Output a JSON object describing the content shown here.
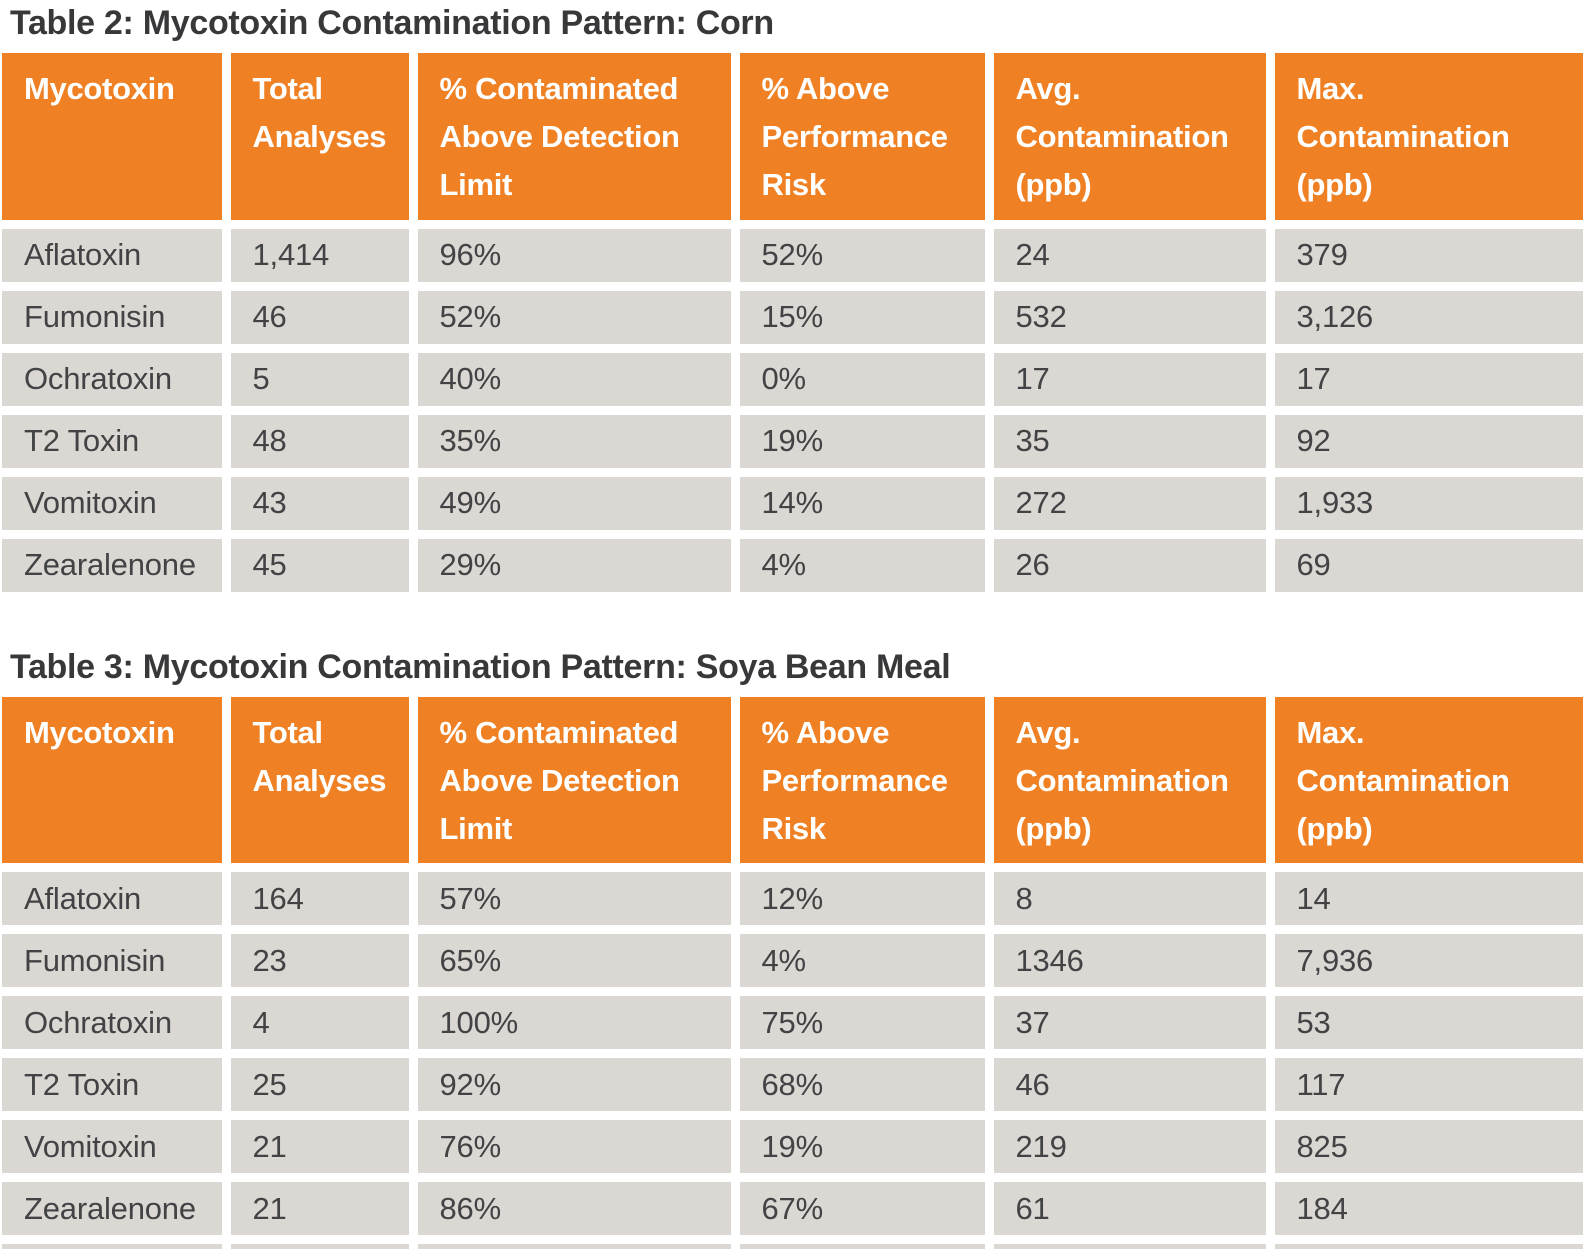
{
  "colors": {
    "header_bg": "#ef8124",
    "header_text": "#ffffff",
    "row_bg": "#dbd8d3",
    "body_text": "#434345",
    "title_text": "#38383a",
    "gap": "#ffffff"
  },
  "tables": [
    {
      "title": "Table 2: Mycotoxin Contamination Pattern: Corn",
      "columns": [
        "Mycotoxin",
        "Total Analyses",
        "% Contaminated Above Detection Limit",
        "% Above Performance Risk",
        "Avg. Contamination (ppb)",
        "Max. Contamination (ppb)"
      ],
      "rows": [
        [
          "Aflatoxin",
          "1,414",
          "96%",
          "52%",
          "24",
          "379"
        ],
        [
          "Fumonisin",
          "46",
          "52%",
          "15%",
          "532",
          "3,126"
        ],
        [
          "Ochratoxin",
          "5",
          "40%",
          "0%",
          "17",
          "17"
        ],
        [
          "T2 Toxin",
          "48",
          "35%",
          "19%",
          "35",
          "92"
        ],
        [
          "Vomitoxin",
          "43",
          "49%",
          "14%",
          "272",
          "1,933"
        ],
        [
          "Zearalenone",
          "45",
          "29%",
          "4%",
          "26",
          "69"
        ]
      ],
      "cut_off_next_row": false
    },
    {
      "title": "Table 3: Mycotoxin Contamination Pattern: Soya Bean Meal",
      "columns": [
        "Mycotoxin",
        "Total Analyses",
        "% Contaminated Above Detection Limit",
        "% Above Performance Risk",
        "Avg. Contamination (ppb)",
        "Max. Contamination (ppb)"
      ],
      "rows": [
        [
          "Aflatoxin",
          "164",
          "57%",
          "12%",
          "8",
          "14"
        ],
        [
          "Fumonisin",
          "23",
          "65%",
          "4%",
          "1346",
          "7,936"
        ],
        [
          "Ochratoxin",
          "4",
          "100%",
          "75%",
          "37",
          "53"
        ],
        [
          "T2 Toxin",
          "25",
          "92%",
          "68%",
          "46",
          "117"
        ],
        [
          "Vomitoxin",
          "21",
          "76%",
          "19%",
          "219",
          "825"
        ],
        [
          "Zearalenone",
          "21",
          "86%",
          "67%",
          "61",
          "184"
        ]
      ],
      "cut_off_next_row": true
    }
  ]
}
